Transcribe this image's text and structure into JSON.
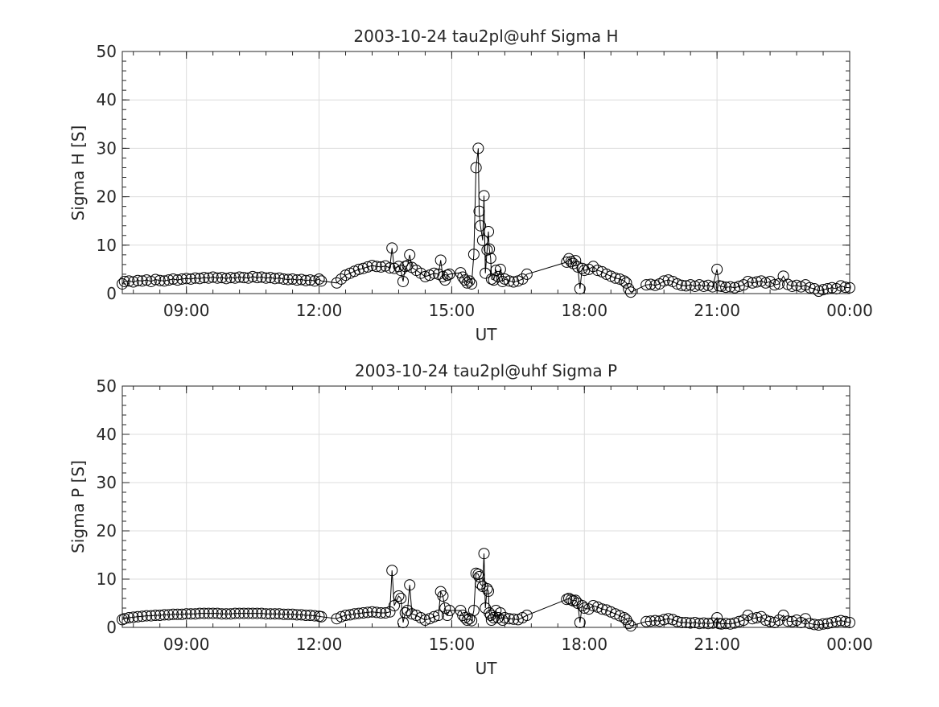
{
  "chart_data": [
    {
      "type": "line",
      "title": "2003-10-24  tau2pl@uhf Sigma H",
      "xlabel": "UT",
      "ylabel": "Sigma H [S]",
      "xlim": [
        7.55,
        24.0
      ],
      "ylim": [
        0,
        50
      ],
      "xticks": [
        9,
        12,
        15,
        18,
        21,
        24
      ],
      "xtick_labels": [
        "09:00",
        "12:00",
        "15:00",
        "18:00",
        "21:00",
        "00:00"
      ],
      "yticks": [
        0,
        10,
        20,
        30,
        40,
        50
      ],
      "ytick_labels": [
        "0",
        "10",
        "20",
        "30",
        "40",
        "50"
      ],
      "grid": true,
      "marker": "open-circle",
      "x": [
        7.55,
        7.6,
        7.7,
        7.8,
        7.9,
        8.0,
        8.1,
        8.2,
        8.3,
        8.4,
        8.5,
        8.6,
        8.7,
        8.8,
        8.9,
        9.0,
        9.1,
        9.2,
        9.3,
        9.4,
        9.5,
        9.6,
        9.7,
        9.8,
        9.9,
        10.0,
        10.1,
        10.2,
        10.3,
        10.4,
        10.5,
        10.6,
        10.7,
        10.8,
        10.9,
        11.0,
        11.1,
        11.2,
        11.3,
        11.4,
        11.5,
        11.6,
        11.7,
        11.8,
        11.9,
        12.0,
        12.05,
        12.4,
        12.5,
        12.6,
        12.7,
        12.8,
        12.9,
        13.0,
        13.1,
        13.2,
        13.3,
        13.4,
        13.5,
        13.6,
        13.65,
        13.7,
        13.8,
        13.85,
        13.9,
        13.95,
        14.0,
        14.05,
        14.1,
        14.2,
        14.3,
        14.4,
        14.5,
        14.6,
        14.7,
        14.75,
        14.8,
        14.85,
        14.9,
        14.95,
        15.2,
        15.25,
        15.3,
        15.35,
        15.4,
        15.45,
        15.5,
        15.55,
        15.6,
        15.62,
        15.65,
        15.7,
        15.73,
        15.76,
        15.8,
        15.83,
        15.85,
        15.88,
        15.9,
        15.95,
        16.0,
        16.05,
        16.1,
        16.15,
        16.2,
        16.3,
        16.4,
        16.5,
        16.6,
        16.7,
        17.6,
        17.65,
        17.7,
        17.75,
        17.8,
        17.85,
        17.9,
        17.95,
        18.0,
        18.1,
        18.2,
        18.3,
        18.4,
        18.5,
        18.6,
        18.7,
        18.8,
        18.9,
        18.95,
        19.0,
        19.05,
        19.4,
        19.5,
        19.6,
        19.7,
        19.8,
        19.9,
        20.0,
        20.1,
        20.2,
        20.3,
        20.4,
        20.5,
        20.6,
        20.7,
        20.8,
        20.9,
        21.0,
        21.05,
        21.1,
        21.2,
        21.3,
        21.4,
        21.5,
        21.6,
        21.7,
        21.8,
        21.9,
        22.0,
        22.1,
        22.2,
        22.3,
        22.4,
        22.5,
        22.6,
        22.7,
        22.8,
        22.9,
        23.0,
        23.1,
        23.2,
        23.3,
        23.4,
        23.5,
        23.6,
        23.7,
        23.8,
        23.9,
        24.0
      ],
      "y": [
        2.0,
        2.5,
        2.6,
        2.4,
        2.7,
        2.6,
        2.8,
        2.5,
        2.9,
        2.7,
        2.6,
        2.8,
        3.0,
        2.8,
        3.0,
        3.1,
        3.0,
        3.2,
        3.1,
        3.3,
        3.2,
        3.4,
        3.2,
        3.3,
        3.1,
        3.3,
        3.2,
        3.4,
        3.3,
        3.2,
        3.5,
        3.3,
        3.4,
        3.2,
        3.3,
        3.1,
        3.2,
        3.0,
        2.9,
        3.0,
        2.8,
        2.9,
        2.7,
        2.8,
        2.6,
        3.0,
        2.6,
        2.2,
        3.0,
        3.8,
        4.2,
        4.6,
        5.0,
        5.2,
        5.5,
        5.8,
        5.6,
        5.5,
        5.7,
        5.3,
        9.4,
        5.2,
        5.6,
        4.8,
        2.5,
        5.6,
        5.8,
        8.0,
        5.4,
        4.8,
        4.2,
        3.5,
        3.8,
        4.2,
        4.0,
        6.9,
        3.5,
        2.8,
        3.8,
        4.0,
        4.3,
        3.4,
        2.8,
        2.2,
        2.6,
        2.0,
        8.1,
        26.0,
        30.0,
        17.0,
        14.0,
        11.0,
        20.2,
        4.2,
        9.0,
        12.8,
        9.2,
        7.3,
        3.0,
        2.8,
        4.8,
        3.5,
        5.0,
        2.5,
        3.0,
        2.6,
        2.4,
        2.6,
        3.0,
        4.0,
        6.5,
        7.2,
        6.6,
        6.2,
        6.8,
        5.5,
        1.0,
        5.2,
        4.8,
        5.0,
        5.6,
        4.8,
        4.5,
        4.0,
        3.6,
        3.2,
        3.0,
        2.6,
        2.2,
        1.0,
        0.3,
        1.8,
        1.9,
        1.7,
        2.0,
        2.6,
        2.8,
        2.5,
        2.0,
        1.7,
        1.6,
        1.8,
        1.5,
        1.8,
        1.5,
        1.7,
        1.4,
        5.0,
        1.6,
        1.5,
        1.3,
        1.4,
        1.2,
        1.5,
        1.8,
        2.5,
        2.2,
        2.4,
        2.6,
        2.2,
        2.5,
        1.8,
        2.0,
        3.6,
        1.9,
        1.5,
        1.7,
        1.4,
        1.8,
        1.2,
        1.0,
        0.5,
        0.8,
        1.0,
        1.2,
        1.0,
        1.6,
        1.3,
        1.2
      ]
    },
    {
      "type": "line",
      "title": "2003-10-24  tau2pl@uhf Sigma P",
      "xlabel": "UT",
      "ylabel": "Sigma P [S]",
      "xlim": [
        7.55,
        24.0
      ],
      "ylim": [
        0,
        50
      ],
      "xticks": [
        9,
        12,
        15,
        18,
        21,
        24
      ],
      "xtick_labels": [
        "09:00",
        "12:00",
        "15:00",
        "18:00",
        "21:00",
        "00:00"
      ],
      "yticks": [
        0,
        10,
        20,
        30,
        40,
        50
      ],
      "ytick_labels": [
        "0",
        "10",
        "20",
        "30",
        "40",
        "50"
      ],
      "grid": true,
      "marker": "open-circle",
      "x": [
        7.55,
        7.6,
        7.7,
        7.8,
        7.9,
        8.0,
        8.1,
        8.2,
        8.3,
        8.4,
        8.5,
        8.6,
        8.7,
        8.8,
        8.9,
        9.0,
        9.1,
        9.2,
        9.3,
        9.4,
        9.5,
        9.6,
        9.7,
        9.8,
        9.9,
        10.0,
        10.1,
        10.2,
        10.3,
        10.4,
        10.5,
        10.6,
        10.7,
        10.8,
        10.9,
        11.0,
        11.1,
        11.2,
        11.3,
        11.4,
        11.5,
        11.6,
        11.7,
        11.8,
        11.9,
        12.0,
        12.05,
        12.4,
        12.5,
        12.6,
        12.7,
        12.8,
        12.9,
        13.0,
        13.1,
        13.2,
        13.3,
        13.4,
        13.5,
        13.6,
        13.65,
        13.7,
        13.8,
        13.85,
        13.9,
        13.95,
        14.0,
        14.05,
        14.1,
        14.2,
        14.3,
        14.4,
        14.5,
        14.6,
        14.7,
        14.75,
        14.8,
        14.85,
        14.9,
        14.95,
        15.2,
        15.25,
        15.3,
        15.35,
        15.4,
        15.45,
        15.5,
        15.55,
        15.6,
        15.62,
        15.65,
        15.7,
        15.73,
        15.76,
        15.8,
        15.83,
        15.85,
        15.88,
        15.9,
        15.95,
        16.0,
        16.05,
        16.1,
        16.15,
        16.2,
        16.3,
        16.4,
        16.5,
        16.6,
        16.7,
        17.6,
        17.65,
        17.7,
        17.75,
        17.8,
        17.85,
        17.9,
        17.95,
        18.0,
        18.1,
        18.2,
        18.3,
        18.4,
        18.5,
        18.6,
        18.7,
        18.8,
        18.9,
        18.95,
        19.0,
        19.05,
        19.4,
        19.5,
        19.6,
        19.7,
        19.8,
        19.9,
        20.0,
        20.1,
        20.2,
        20.3,
        20.4,
        20.5,
        20.6,
        20.7,
        20.8,
        20.9,
        21.0,
        21.05,
        21.1,
        21.2,
        21.3,
        21.4,
        21.5,
        21.6,
        21.7,
        21.8,
        21.9,
        22.0,
        22.1,
        22.2,
        22.3,
        22.4,
        22.5,
        22.6,
        22.7,
        22.8,
        22.9,
        23.0,
        23.1,
        23.2,
        23.3,
        23.4,
        23.5,
        23.6,
        23.7,
        23.8,
        23.9,
        24.0
      ],
      "y": [
        1.6,
        1.8,
        2.0,
        2.1,
        2.2,
        2.3,
        2.4,
        2.4,
        2.5,
        2.5,
        2.6,
        2.6,
        2.7,
        2.7,
        2.7,
        2.8,
        2.8,
        2.8,
        2.9,
        2.9,
        2.9,
        2.9,
        2.9,
        2.8,
        2.8,
        2.8,
        2.9,
        2.9,
        2.9,
        2.9,
        2.9,
        2.9,
        2.9,
        2.8,
        2.8,
        2.8,
        2.8,
        2.7,
        2.7,
        2.7,
        2.6,
        2.6,
        2.5,
        2.5,
        2.4,
        2.3,
        2.2,
        1.8,
        2.2,
        2.5,
        2.6,
        2.8,
        2.9,
        3.0,
        3.1,
        3.2,
        3.1,
        3.0,
        3.0,
        3.2,
        11.8,
        4.5,
        6.5,
        6.0,
        1.0,
        3.0,
        3.5,
        8.8,
        2.8,
        2.5,
        2.0,
        1.5,
        1.8,
        2.2,
        2.5,
        7.4,
        6.5,
        4.0,
        2.5,
        3.5,
        3.5,
        2.5,
        2.0,
        1.5,
        1.8,
        1.4,
        3.5,
        11.2,
        11.0,
        10.5,
        9.0,
        8.5,
        15.3,
        4.0,
        8.0,
        7.5,
        3.0,
        2.5,
        1.5,
        2.0,
        3.5,
        2.0,
        3.0,
        1.5,
        2.0,
        1.8,
        1.7,
        1.6,
        2.0,
        2.5,
        5.8,
        6.0,
        5.7,
        5.5,
        5.6,
        5.0,
        1.0,
        4.5,
        4.0,
        3.8,
        4.5,
        4.2,
        3.8,
        3.6,
        3.2,
        2.8,
        2.4,
        2.0,
        1.6,
        0.8,
        0.3,
        1.2,
        1.3,
        1.4,
        1.3,
        1.6,
        1.8,
        1.6,
        1.2,
        1.0,
        1.0,
        0.9,
        1.0,
        0.8,
        0.9,
        0.8,
        0.9,
        2.0,
        0.8,
        0.7,
        0.8,
        0.7,
        0.9,
        1.2,
        1.5,
        2.5,
        1.8,
        2.0,
        2.2,
        1.5,
        1.2,
        1.0,
        1.5,
        2.5,
        1.3,
        1.2,
        1.5,
        1.0,
        1.8,
        0.8,
        0.6,
        0.5,
        0.7,
        0.8,
        1.0,
        1.2,
        1.4,
        1.2,
        1.0
      ]
    }
  ]
}
